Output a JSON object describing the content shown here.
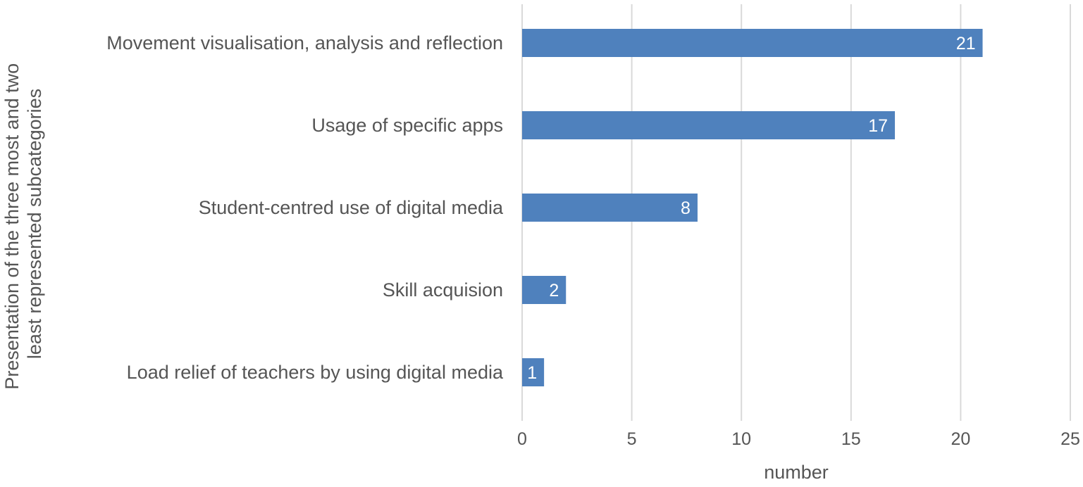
{
  "chart_data": {
    "type": "bar",
    "orientation": "horizontal",
    "categories": [
      "Movement visualisation, analysis and reflection",
      "Usage of specific apps",
      "Student-centred use of digital media",
      "Skill acquision",
      "Load relief of teachers by using digital media"
    ],
    "values": [
      21,
      17,
      8,
      2,
      1
    ],
    "data_labels": [
      "21",
      "17",
      "8",
      "2",
      "1"
    ],
    "xlabel": "number",
    "ylabel_lines": [
      "Presentation of the three most and two",
      "least represented subcategories"
    ],
    "xlim": [
      0,
      25
    ],
    "xticks": [
      0,
      5,
      10,
      15,
      20,
      25
    ],
    "xtick_labels": [
      "0",
      "5",
      "10",
      "15",
      "20",
      "25"
    ],
    "grid": "vertical",
    "legend": "none",
    "colors": {
      "bar": "#4f81bd",
      "grid": "#d9d9d9",
      "text": "#555555",
      "data_label": "#ffffff"
    }
  }
}
